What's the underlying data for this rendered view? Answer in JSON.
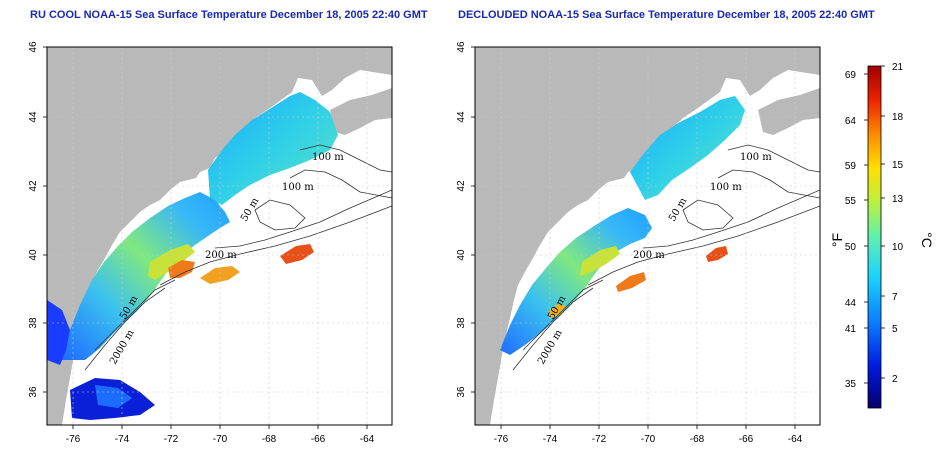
{
  "panels": [
    {
      "title": "RU COOL NOAA-15 Sea Surface Temperature December 18, 2005 22:40 GMT",
      "contours": [
        "100 m",
        "100 m",
        "50 m",
        "200 m",
        "50 m",
        "2000 m"
      ]
    },
    {
      "title": "DECLOUDED NOAA-15 Sea Surface Temperature December 18, 2005 22:40 GMT",
      "contours": [
        "100 m",
        "100 m",
        "50 m",
        "200 m",
        "50 m",
        "2000 m"
      ]
    }
  ],
  "lon_ticks": [
    "-76",
    "-74",
    "-72",
    "-70",
    "-68",
    "-66",
    "-64"
  ],
  "lat_ticks": [
    "46",
    "44",
    "42",
    "40",
    "38",
    "36"
  ],
  "colorbar": {
    "fahrenheit_label": "°F",
    "celsius_label": "°C",
    "fahrenheit_ticks": [
      "69",
      "64",
      "59",
      "55",
      "50",
      "44",
      "41",
      "35"
    ],
    "celsius_ticks": [
      "21",
      "18",
      "15",
      "13",
      "10",
      "7",
      "5",
      "2"
    ]
  },
  "colors": {
    "land": "#b9b9b9",
    "title": "#1a2ab0",
    "grid": "#c8c8c8"
  }
}
